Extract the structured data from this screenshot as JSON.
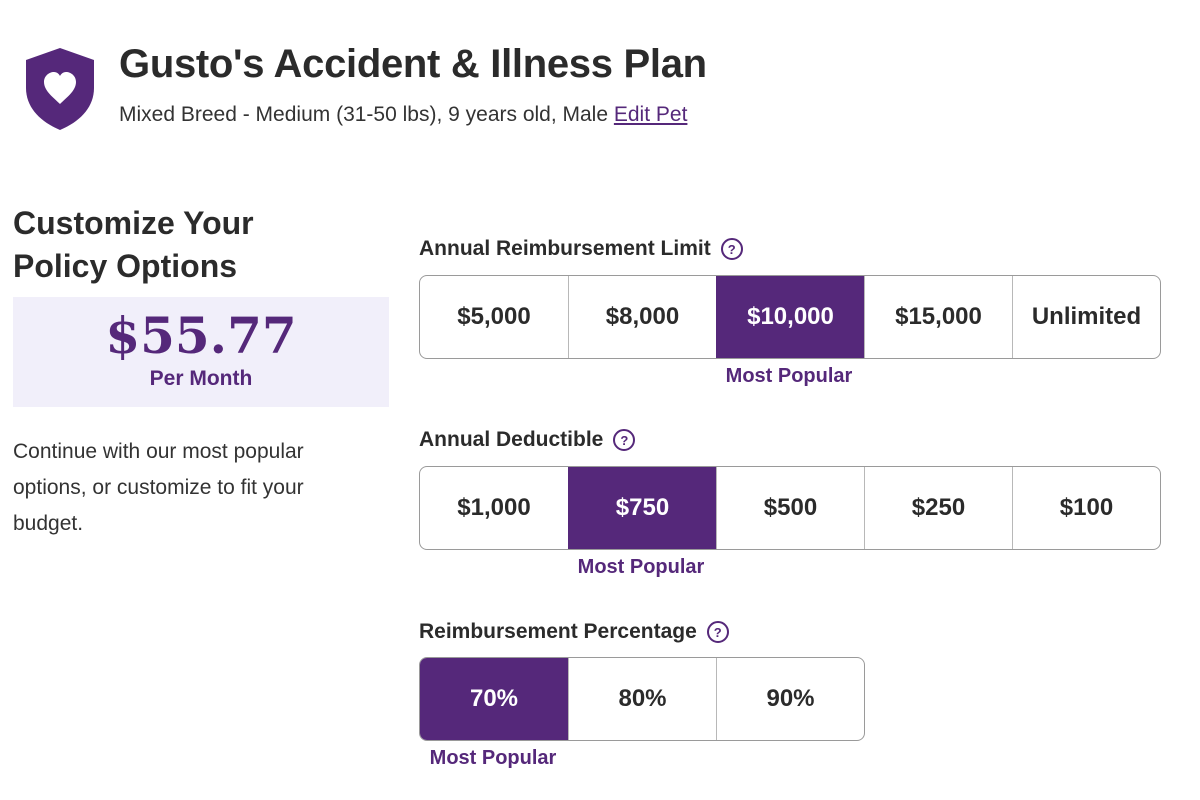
{
  "header": {
    "title": "Gusto's Accident & Illness Plan",
    "pet_details": "Mixed Breed - Medium (31-50 lbs), 9 years old, Male",
    "edit_pet_label": "Edit Pet",
    "shield_icon": "shield-heart-icon"
  },
  "sidebar": {
    "title": "Customize Your Policy Options",
    "price": "$55.77",
    "price_unit": "Per Month",
    "description": "Continue with our most popular options, or customize to fit your budget."
  },
  "sections": {
    "reimbursement_limit": {
      "label": "Annual Reimbursement Limit",
      "options": [
        "$5,000",
        "$8,000",
        "$10,000",
        "$15,000",
        "Unlimited"
      ],
      "selected": "$10,000",
      "popular_label": "Most Popular"
    },
    "deductible": {
      "label": "Annual Deductible",
      "options": [
        "$1,000",
        "$750",
        "$500",
        "$250",
        "$100"
      ],
      "selected": "$750",
      "popular_label": "Most Popular"
    },
    "reimbursement_percentage": {
      "label": "Reimbursement Percentage",
      "options": [
        "70%",
        "80%",
        "90%"
      ],
      "selected": "70%",
      "popular_label": "Most Popular"
    }
  },
  "help_icon_glyph": "?",
  "colors": {
    "brand_purple": "#55287a",
    "price_box_bg": "#f1effa",
    "border": "#9a9a9a"
  }
}
